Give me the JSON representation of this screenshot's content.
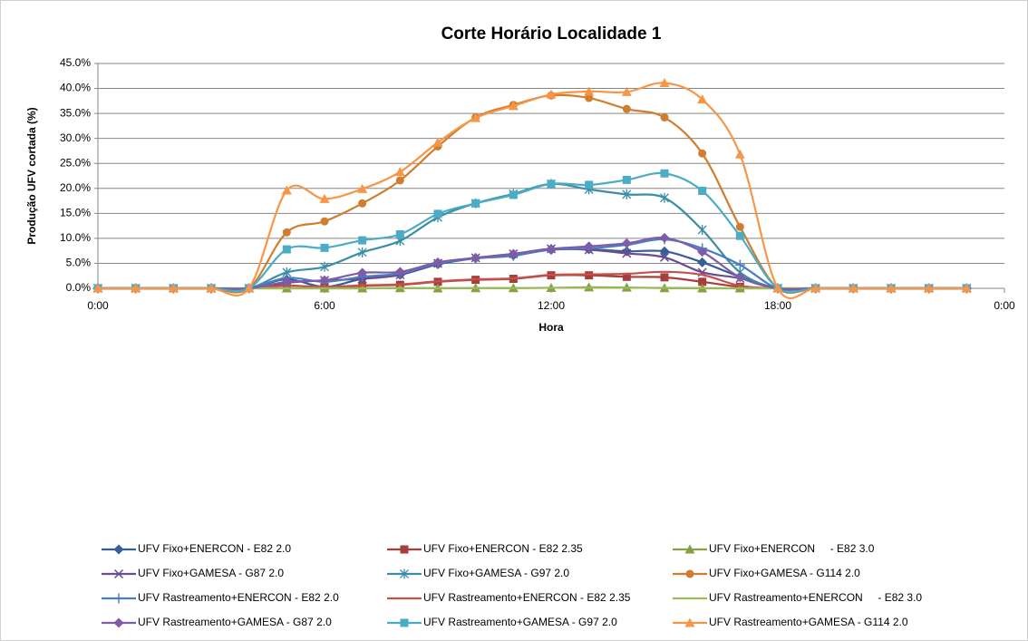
{
  "chart_data": {
    "type": "line",
    "title": "Corte Horário Localidade 1",
    "xlabel": "Hora",
    "ylabel": "Produção UFV cortada (%)",
    "x": [
      0,
      1,
      2,
      3,
      4,
      5,
      6,
      7,
      8,
      9,
      10,
      11,
      12,
      13,
      14,
      15,
      16,
      17,
      18,
      19,
      20,
      21,
      22,
      23
    ],
    "xlim": [
      0,
      24
    ],
    "xticks": [
      {
        "value": 0,
        "label": "0:00"
      },
      {
        "value": 6,
        "label": "6:00"
      },
      {
        "value": 12,
        "label": "12:00"
      },
      {
        "value": 18,
        "label": "18:00"
      },
      {
        "value": 24,
        "label": "0:00"
      }
    ],
    "ylim": [
      0,
      45
    ],
    "yticks": [
      {
        "value": 0,
        "label": "0.0%"
      },
      {
        "value": 5,
        "label": "5.0%"
      },
      {
        "value": 10,
        "label": "10.0%"
      },
      {
        "value": 15,
        "label": "15.0%"
      },
      {
        "value": 20,
        "label": "20.0%"
      },
      {
        "value": 25,
        "label": "25.0%"
      },
      {
        "value": 30,
        "label": "30.0%"
      },
      {
        "value": 35,
        "label": "35.0%"
      },
      {
        "value": 40,
        "label": "40.0%"
      },
      {
        "value": 45,
        "label": "45.0%"
      }
    ],
    "grid": true,
    "legend": "bottom",
    "smooth": true,
    "series": [
      {
        "name": "UFV Fixo+ENERCON - E82 2.0",
        "color": "#375d9a",
        "marker": "diamond",
        "values": [
          0,
          0,
          0,
          0,
          0,
          1.8,
          0.3,
          1.9,
          2.7,
          4.8,
          6.0,
          6.6,
          7.7,
          7.8,
          7.4,
          7.4,
          5.2,
          2.3,
          0,
          0,
          0,
          0,
          0,
          0
        ]
      },
      {
        "name": "UFV Fixo+ENERCON - E82 2.35",
        "color": "#a63f3c",
        "marker": "square",
        "values": [
          0,
          0,
          0,
          0,
          0,
          0.6,
          0.1,
          0.5,
          0.7,
          1.3,
          1.7,
          1.9,
          2.6,
          2.6,
          2.3,
          2.2,
          1.3,
          0.3,
          0,
          0,
          0,
          0,
          0,
          0
        ]
      },
      {
        "name": "UFV Fixo+ENERCON     - E82 3.0",
        "color": "#86a043",
        "marker": "triangle",
        "values": [
          0,
          0,
          0,
          0,
          0,
          0,
          0,
          0,
          0.05,
          0,
          0.05,
          0.05,
          0.1,
          0.2,
          0.15,
          0.05,
          0,
          0,
          0,
          0,
          0,
          0,
          0,
          0
        ]
      },
      {
        "name": "UFV Fixo+GAMESA - G87 2.0",
        "color": "#6a4c8f",
        "marker": "x",
        "values": [
          0,
          0,
          0,
          0,
          0,
          1.1,
          1.6,
          1.9,
          2.7,
          5.0,
          6.1,
          6.9,
          7.9,
          7.7,
          7.0,
          6.2,
          3.2,
          2.0,
          0,
          0,
          0,
          0,
          0,
          0
        ]
      },
      {
        "name": "UFV Fixo+GAMESA - G97 2.0",
        "color": "#3a8ea8",
        "marker": "asterisk",
        "values": [
          0,
          0,
          0,
          0,
          0,
          3.2,
          4.3,
          7.2,
          9.5,
          14.2,
          17.0,
          18.9,
          20.9,
          19.8,
          18.8,
          18.1,
          11.7,
          3.2,
          0,
          0,
          0,
          0,
          0,
          0
        ]
      },
      {
        "name": "UFV Fixo+GAMESA - G114 2.0",
        "color": "#d07d2f",
        "marker": "circle",
        "values": [
          0,
          0,
          0,
          0,
          0,
          11.2,
          13.4,
          17.0,
          21.6,
          28.4,
          34.2,
          36.7,
          38.6,
          38.1,
          35.9,
          34.2,
          27.0,
          12.3,
          0,
          0,
          0,
          0,
          0,
          0
        ]
      },
      {
        "name": "UFV Rastreamento+ENERCON - E82 2.0",
        "color": "#4a7ec2",
        "marker": "plus",
        "values": [
          0,
          0,
          0,
          0,
          0,
          2.1,
          1.3,
          2.3,
          3.0,
          5.0,
          6.0,
          6.5,
          7.8,
          8.0,
          8.7,
          9.8,
          8.0,
          4.7,
          0,
          0,
          0,
          0,
          0,
          0
        ]
      },
      {
        "name": "UFV Rastreamento+ENERCON - E82 2.35",
        "color": "#c8504c",
        "marker": null,
        "values": [
          0,
          0,
          0,
          0,
          0,
          0.5,
          0.3,
          0.6,
          0.8,
          1.4,
          1.8,
          2.0,
          2.7,
          2.8,
          2.9,
          3.3,
          2.7,
          0.5,
          0,
          0,
          0,
          0,
          0,
          0
        ]
      },
      {
        "name": "UFV Rastreamento+ENERCON     - E82 3.0",
        "color": "#9bbb59",
        "marker": null,
        "values": [
          0,
          0,
          0,
          0,
          0,
          0,
          0,
          0,
          0.05,
          0.05,
          0.05,
          0.05,
          0.1,
          0.1,
          0.1,
          0.1,
          0.05,
          0,
          0,
          0,
          0,
          0,
          0,
          0
        ]
      },
      {
        "name": "UFV Rastreamento+GAMESA - G87 2.0",
        "color": "#7e5ca8",
        "marker": "diamond",
        "values": [
          0,
          0,
          0,
          0,
          0,
          1.3,
          1.6,
          3.1,
          3.3,
          5.2,
          6.1,
          6.9,
          7.9,
          8.4,
          9.0,
          10.1,
          7.3,
          2.2,
          0,
          0,
          0,
          0,
          0,
          0
        ]
      },
      {
        "name": "UFV Rastreamento+GAMESA - G97 2.0",
        "color": "#4bacc6",
        "marker": "square",
        "values": [
          0,
          0,
          0,
          0,
          0,
          7.8,
          8.1,
          9.6,
          10.8,
          14.9,
          17.0,
          18.7,
          20.9,
          20.7,
          21.7,
          23.0,
          19.5,
          10.5,
          0,
          0,
          0,
          0,
          0,
          0
        ]
      },
      {
        "name": "UFV Rastreamento+GAMESA - G114 2.0",
        "color": "#f79646",
        "marker": "triangle",
        "values": [
          0,
          0,
          0,
          0,
          0,
          19.6,
          17.9,
          19.9,
          23.3,
          29.2,
          34.1,
          36.5,
          38.8,
          39.4,
          39.3,
          41.1,
          37.8,
          26.8,
          0,
          0,
          0,
          0,
          0,
          0
        ]
      }
    ]
  }
}
